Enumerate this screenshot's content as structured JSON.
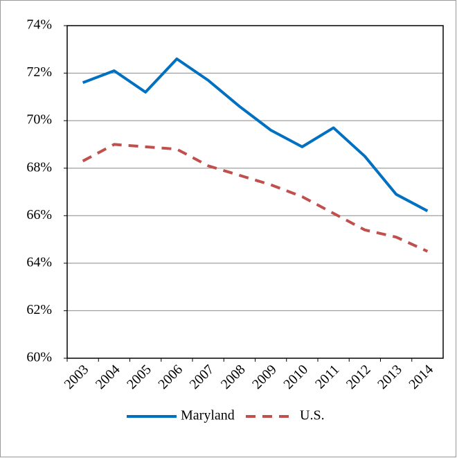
{
  "chart_data": {
    "type": "line",
    "categories": [
      "2003",
      "2004",
      "2005",
      "2006",
      "2007",
      "2008",
      "2009",
      "2010",
      "2011",
      "2012",
      "2013",
      "2014"
    ],
    "series": [
      {
        "name": "Maryland",
        "color": "#0070c0",
        "dash": false,
        "values": [
          71.6,
          72.1,
          71.2,
          72.6,
          71.7,
          70.6,
          69.6,
          68.9,
          69.7,
          68.5,
          66.9,
          66.2
        ]
      },
      {
        "name": "U.S.",
        "color": "#c0504d",
        "dash": true,
        "values": [
          68.3,
          69.0,
          68.9,
          68.8,
          68.1,
          67.7,
          67.3,
          66.8,
          66.1,
          65.4,
          65.1,
          64.5
        ]
      }
    ],
    "ylim": [
      60,
      74
    ],
    "yticks": [
      {
        "value": 60,
        "label": "60%"
      },
      {
        "value": 62,
        "label": "62%"
      },
      {
        "value": 64,
        "label": "64%"
      },
      {
        "value": 66,
        "label": "66%"
      },
      {
        "value": 68,
        "label": "68%"
      },
      {
        "value": 70,
        "label": "70%"
      },
      {
        "value": 72,
        "label": "72%"
      },
      {
        "value": 74,
        "label": "74%"
      }
    ],
    "grid": true,
    "legend": "bottom"
  }
}
